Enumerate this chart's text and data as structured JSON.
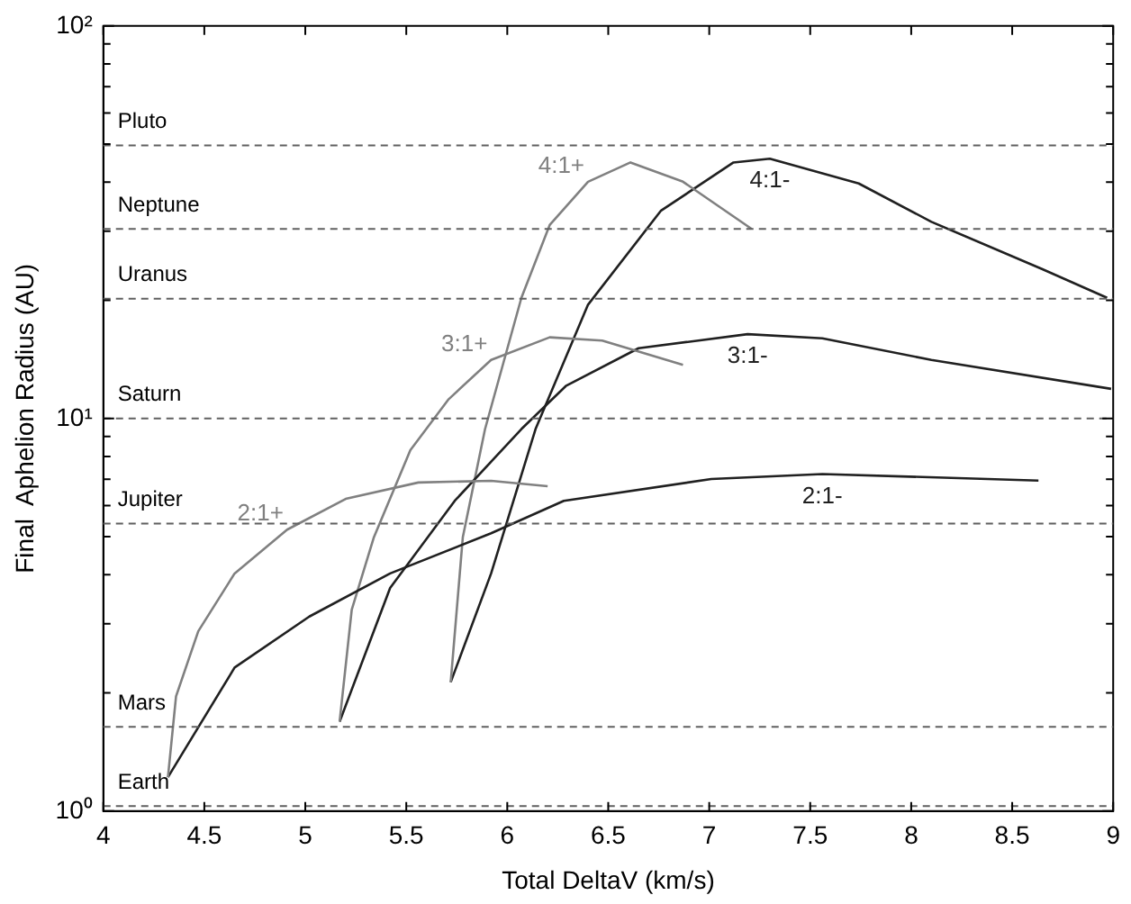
{
  "chart_data": {
    "type": "line",
    "xlabel": "Total DeltaV (km/s)",
    "ylabel": "Final  Aphelion Radius (AU)",
    "log": "y",
    "grid": false,
    "legend": false,
    "marker": "none",
    "line_style": "solid",
    "xlim": [
      4,
      9
    ],
    "xticks": [
      4,
      4.5,
      5,
      5.5,
      6,
      6.5,
      7,
      7.5,
      8,
      8.5,
      9
    ],
    "ylim": [
      1,
      100
    ],
    "yticks": [
      {
        "value": 1,
        "label": "10⁰"
      },
      {
        "value": 2,
        "label": null
      },
      {
        "value": 3,
        "label": null
      },
      {
        "value": 4,
        "label": null
      },
      {
        "value": 5,
        "label": null
      },
      {
        "value": 6,
        "label": null
      },
      {
        "value": 7,
        "label": null
      },
      {
        "value": 8,
        "label": null
      },
      {
        "value": 9,
        "label": null
      },
      {
        "value": 10,
        "label": "10¹"
      },
      {
        "value": 20,
        "label": null
      },
      {
        "value": 30,
        "label": null
      },
      {
        "value": 40,
        "label": null
      },
      {
        "value": 50,
        "label": null
      },
      {
        "value": 60,
        "label": null
      },
      {
        "value": 70,
        "label": null
      },
      {
        "value": 80,
        "label": null
      },
      {
        "value": 90,
        "label": null
      },
      {
        "value": 100,
        "label": "10²"
      }
    ],
    "series": [
      {
        "name": "2:1+",
        "color": "#808080",
        "x": [
          4.32,
          4.36,
          4.47,
          4.65,
          4.91,
          5.2,
          5.56,
          5.92,
          6.2
        ],
        "values": [
          1.22,
          1.96,
          2.87,
          4.03,
          5.21,
          6.24,
          6.87,
          6.94,
          6.72
        ]
      },
      {
        "name": "2:1-",
        "color": "#202020",
        "x": [
          4.32,
          4.65,
          5.02,
          5.42,
          5.92,
          6.28,
          7.01,
          7.56,
          8.63
        ],
        "values": [
          1.22,
          2.32,
          3.13,
          4.03,
          5.1,
          6.17,
          7.01,
          7.22,
          6.95
        ]
      },
      {
        "name": "3:1+",
        "color": "#808080",
        "x": [
          5.17,
          5.23,
          5.34,
          5.52,
          5.71,
          5.92,
          6.21,
          6.47,
          6.87
        ],
        "values": [
          1.69,
          3.26,
          4.99,
          8.3,
          11.2,
          14.1,
          16.1,
          15.8,
          13.7
        ]
      },
      {
        "name": "3:1-",
        "color": "#202020",
        "x": [
          5.17,
          5.42,
          5.74,
          6.07,
          6.29,
          6.65,
          7.19,
          7.56,
          8.1,
          8.99
        ],
        "values": [
          1.69,
          3.7,
          6.17,
          9.4,
          12.1,
          15.1,
          16.4,
          16.0,
          14.1,
          11.9
        ]
      },
      {
        "name": "4:1+",
        "color": "#808080",
        "x": [
          5.72,
          5.78,
          5.89,
          6.07,
          6.21,
          6.4,
          6.61,
          6.87,
          7.21
        ],
        "values": [
          2.13,
          4.99,
          9.4,
          20.3,
          31.1,
          40.1,
          44.9,
          40.1,
          30.4
        ]
      },
      {
        "name": "4:1-",
        "color": "#202020",
        "x": [
          5.72,
          5.92,
          6.14,
          6.4,
          6.76,
          7.12,
          7.3,
          7.74,
          8.1,
          8.65,
          8.97
        ],
        "values": [
          2.13,
          4.03,
          9.4,
          19.5,
          33.8,
          44.9,
          45.9,
          39.7,
          31.7,
          24.0,
          20.3
        ]
      }
    ],
    "ref_lines": [
      {
        "axis": "y",
        "value": 49.6,
        "label": "Pluto",
        "color": "#606060",
        "line_style": "dashed"
      },
      {
        "axis": "y",
        "value": 30.4,
        "label": "Neptune",
        "color": "#606060",
        "line_style": "dashed"
      },
      {
        "axis": "y",
        "value": 20.2,
        "label": "Uranus",
        "color": "#606060",
        "line_style": "dashed"
      },
      {
        "axis": "y",
        "value": 10,
        "label": "Saturn",
        "color": "#606060",
        "line_style": "dashed"
      },
      {
        "axis": "y",
        "value": 5.4,
        "label": "Jupiter",
        "color": "#606060",
        "line_style": "dashed"
      },
      {
        "axis": "y",
        "value": 1.64,
        "label": "Mars",
        "color": "#606060",
        "line_style": "dashed"
      },
      {
        "axis": "y",
        "value": 1.03,
        "label": "Earth",
        "color": "#606060",
        "line_style": "dashed"
      }
    ]
  }
}
